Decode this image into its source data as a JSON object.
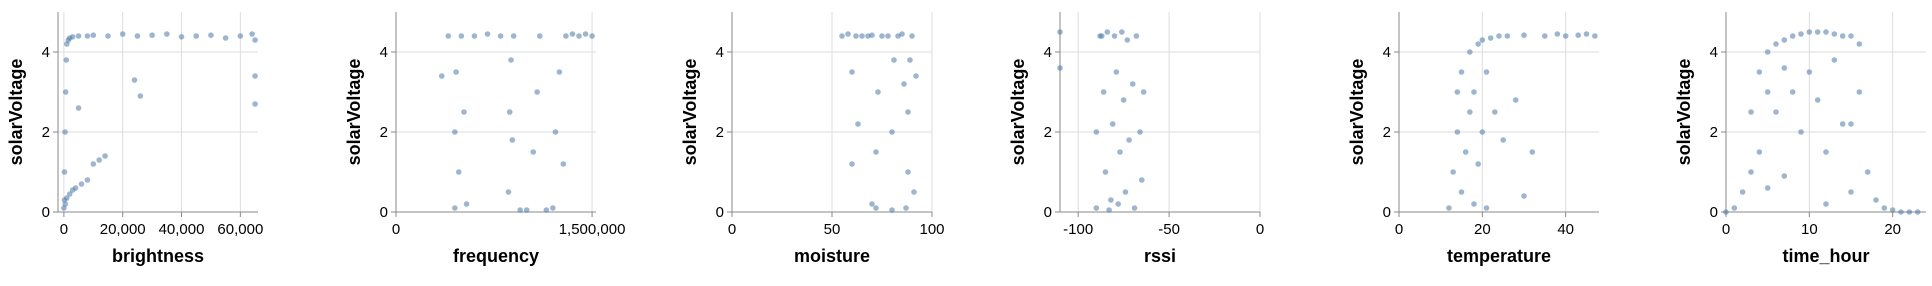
{
  "chart_data": [
    {
      "type": "scatter",
      "xlabel": "brightness",
      "ylabel": "solarVoltage",
      "color": "#4c78a8",
      "grid": true,
      "xlim": [
        -2000,
        66000
      ],
      "ylim": [
        0,
        5
      ],
      "xticks": [
        0,
        {
          "value": 20000,
          "label": "20,000"
        },
        {
          "value": 40000,
          "label": "40,000"
        },
        {
          "value": 60000,
          "label": "60,000"
        }
      ],
      "yticks": [
        0,
        2,
        4
      ],
      "x": [
        0,
        200,
        400,
        600,
        800,
        1000,
        1500,
        2000,
        3000,
        5000,
        8000,
        10000,
        15000,
        20000,
        25000,
        30000,
        35000,
        40000,
        45000,
        50000,
        55000,
        60000,
        64000,
        65000,
        200,
        500,
        1000,
        2000,
        3000,
        4000,
        6000,
        8000,
        10000,
        12000,
        24000,
        26000,
        14000,
        5000,
        65000,
        65000
      ],
      "values": [
        0.1,
        1.0,
        2.0,
        3.0,
        3.8,
        4.2,
        4.3,
        4.35,
        4.38,
        4.4,
        4.4,
        4.42,
        4.4,
        4.45,
        4.4,
        4.42,
        4.45,
        4.38,
        4.4,
        4.42,
        4.35,
        4.4,
        4.45,
        2.7,
        0.3,
        0.2,
        0.35,
        0.45,
        0.55,
        0.6,
        0.7,
        0.8,
        1.2,
        1.3,
        3.3,
        2.9,
        1.4,
        2.6,
        3.4,
        4.3
      ]
    },
    {
      "type": "scatter",
      "xlabel": "frequency",
      "ylabel": "solarVoltage",
      "color": "#4c78a8",
      "grid": true,
      "xlim": [
        0,
        1530000
      ],
      "ylim": [
        0,
        5
      ],
      "xticks": [
        0,
        {
          "value": 1500000,
          "label": "1,500,000"
        }
      ],
      "yticks": [
        0,
        2,
        4
      ],
      "x": [
        350000,
        400000,
        450000,
        450000,
        460000,
        480000,
        500000,
        520000,
        540000,
        600000,
        700000,
        800000,
        860000,
        870000,
        880000,
        900000,
        950000,
        1000000,
        1050000,
        1080000,
        1100000,
        1150000,
        1200000,
        1220000,
        1250000,
        1300000,
        1350000,
        1400000,
        1450000,
        1500000,
        1280000,
        890000
      ],
      "values": [
        3.4,
        4.4,
        0.1,
        2,
        3.5,
        1,
        4.4,
        2.5,
        0.2,
        4.4,
        4.45,
        4.4,
        0.5,
        2.5,
        3.8,
        4.4,
        0.05,
        0.05,
        1.5,
        3,
        4.4,
        0.05,
        0.1,
        2,
        3.5,
        4.4,
        4.45,
        4.4,
        4.45,
        4.4,
        1.2,
        1.8
      ]
    },
    {
      "type": "scatter",
      "xlabel": "moisture",
      "ylabel": "solarVoltage",
      "color": "#4c78a8",
      "grid": true,
      "xlim": [
        0,
        100
      ],
      "ylim": [
        0,
        5
      ],
      "xticks": [
        0,
        50,
        100
      ],
      "yticks": [
        0,
        2,
        4
      ],
      "x": [
        55,
        58,
        60,
        62,
        65,
        68,
        70,
        72,
        72,
        73,
        75,
        78,
        80,
        80,
        81,
        83,
        85,
        87,
        88,
        88,
        89,
        90,
        91,
        63,
        60,
        70,
        86,
        92
      ],
      "values": [
        4.4,
        4.45,
        3.5,
        4.4,
        4.4,
        4.4,
        4.42,
        0.1,
        1.5,
        3,
        4.4,
        4.4,
        0.05,
        2,
        3.8,
        4.4,
        4.45,
        0.1,
        1,
        2.5,
        3.8,
        4.4,
        0.5,
        2.2,
        1.2,
        0.2,
        3.2,
        3.4
      ]
    },
    {
      "type": "scatter",
      "xlabel": "rssi",
      "ylabel": "solarVoltage",
      "color": "#4c78a8",
      "grid": true,
      "xlim": [
        -110,
        0
      ],
      "ylim": [
        0,
        5
      ],
      "xticks": [
        -100,
        -50,
        0
      ],
      "yticks": [
        0,
        2,
        4
      ],
      "x": [
        -110,
        -110,
        -90,
        -90,
        -88,
        -86,
        -85,
        -84,
        -82,
        -81,
        -80,
        -79,
        -78,
        -77,
        -76,
        -75,
        -74,
        -73,
        -72,
        -70,
        -69,
        -68,
        -66,
        -65,
        -64,
        -87,
        -83
      ],
      "values": [
        4.5,
        3.6,
        0.1,
        2,
        4.4,
        3,
        1,
        4.5,
        0.3,
        2.2,
        4.4,
        3.5,
        0.2,
        1.5,
        4.5,
        2.8,
        0.5,
        4.3,
        1.8,
        3.2,
        0.1,
        4.4,
        2,
        0.8,
        3,
        4.4,
        0.05
      ]
    },
    {
      "type": "scatter",
      "xlabel": "temperature",
      "ylabel": "solarVoltage",
      "color": "#4c78a8",
      "grid": true,
      "xlim": [
        0,
        48
      ],
      "ylim": [
        0,
        5
      ],
      "xticks": [
        0,
        20,
        40
      ],
      "yticks": [
        0,
        2,
        4
      ],
      "x": [
        12,
        13,
        14,
        14,
        15,
        15,
        16,
        17,
        17,
        18,
        18,
        19,
        19,
        20,
        20,
        21,
        21,
        22,
        23,
        24,
        25,
        26,
        28,
        30,
        30,
        32,
        35,
        38,
        40,
        43,
        45,
        47
      ],
      "values": [
        0.1,
        1,
        2,
        3,
        0.5,
        3.5,
        1.5,
        2.5,
        4,
        0.2,
        3,
        1.2,
        4.2,
        2,
        4.3,
        0.1,
        3.5,
        4.35,
        2.5,
        4.4,
        1.8,
        4.4,
        2.8,
        4.42,
        0.4,
        1.5,
        4.4,
        4.45,
        4.4,
        4.42,
        4.45,
        4.4
      ]
    },
    {
      "type": "scatter",
      "xlabel": "time_hour",
      "ylabel": "solarVoltage",
      "color": "#4c78a8",
      "grid": true,
      "xlim": [
        0,
        24
      ],
      "ylim": [
        0,
        5
      ],
      "xticks": [
        0,
        10,
        20
      ],
      "yticks": [
        0,
        2,
        4
      ],
      "x": [
        0,
        1,
        2,
        3,
        3,
        4,
        4,
        5,
        5,
        6,
        6,
        7,
        7,
        8,
        8,
        9,
        9,
        10,
        10,
        11,
        11,
        12,
        12,
        13,
        13,
        14,
        14,
        15,
        15,
        16,
        16,
        17,
        18,
        19,
        20,
        21,
        22,
        23,
        5,
        7,
        12,
        15
      ],
      "values": [
        0,
        0.1,
        0.5,
        2.5,
        1,
        3.5,
        1.5,
        4,
        0.6,
        4.2,
        2.5,
        4.3,
        0.9,
        4.4,
        3,
        4.45,
        2,
        4.5,
        3.5,
        4.5,
        2.8,
        4.5,
        1.5,
        4.45,
        3.8,
        4.4,
        2.2,
        4.4,
        0.5,
        4.2,
        3,
        1,
        0.3,
        0.1,
        0.05,
        0,
        0,
        0,
        3,
        3.6,
        0.2,
        2.2
      ]
    }
  ]
}
